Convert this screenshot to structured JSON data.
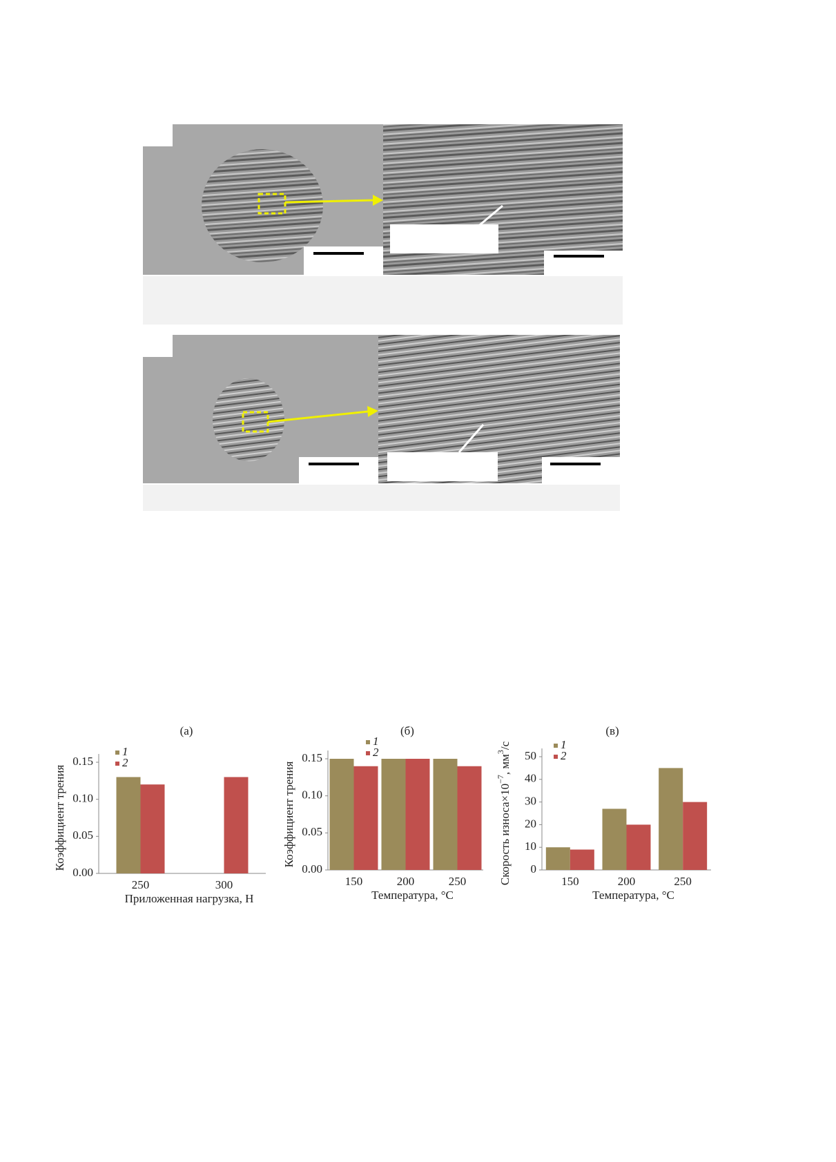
{
  "chart_data": [
    {
      "type": "bar",
      "title": "(а)",
      "x_label": "Приложенная нагрузка, Н",
      "y_label": [
        "Коэффициент трения"
      ],
      "categories": [
        "250",
        "300"
      ],
      "series": [
        {
          "name": "1",
          "color": "#9b8b5a",
          "values": [
            0.13,
            null
          ]
        },
        {
          "name": "2",
          "color": "#c0504d",
          "values": [
            0.12,
            0.13
          ]
        }
      ],
      "ylim": [
        0,
        0.15
      ],
      "yticks": [
        {
          "value": 0,
          "label": "0.00"
        },
        {
          "value": 0.05,
          "label": "0.05"
        },
        {
          "value": 0.1,
          "label": "0.10"
        },
        {
          "value": 0.15,
          "label": "0.15"
        }
      ]
    },
    {
      "type": "bar",
      "title": "(б)",
      "x_label": "Температура, °C",
      "y_label": [
        "Коэффициент трения"
      ],
      "categories": [
        "150",
        "200",
        "250"
      ],
      "series": [
        {
          "name": "1",
          "color": "#9b8b5a",
          "values": [
            0.15,
            0.15,
            0.15
          ]
        },
        {
          "name": "2",
          "color": "#c0504d",
          "values": [
            0.14,
            0.15,
            0.14
          ]
        }
      ],
      "ylim": [
        0,
        0.15
      ],
      "yticks": [
        {
          "value": 0,
          "label": "0.00"
        },
        {
          "value": 0.05,
          "label": "0.05"
        },
        {
          "value": 0.1,
          "label": "0.10"
        },
        {
          "value": 0.15,
          "label": "0.15"
        }
      ]
    },
    {
      "type": "bar",
      "title": "(в)",
      "x_label": "Температура, °C",
      "y_label": [
        "Скорость износа×10",
        "−7",
        ", мм",
        "3",
        "/с"
      ],
      "categories": [
        "150",
        "200",
        "250"
      ],
      "series": [
        {
          "name": "1",
          "color": "#9b8b5a",
          "values": [
            10,
            27,
            45
          ]
        },
        {
          "name": "2",
          "color": "#c0504d",
          "values": [
            9,
            20,
            30
          ]
        }
      ],
      "ylim": [
        0,
        50
      ],
      "yticks": [
        0,
        10,
        20,
        30,
        40,
        50
      ]
    }
  ]
}
